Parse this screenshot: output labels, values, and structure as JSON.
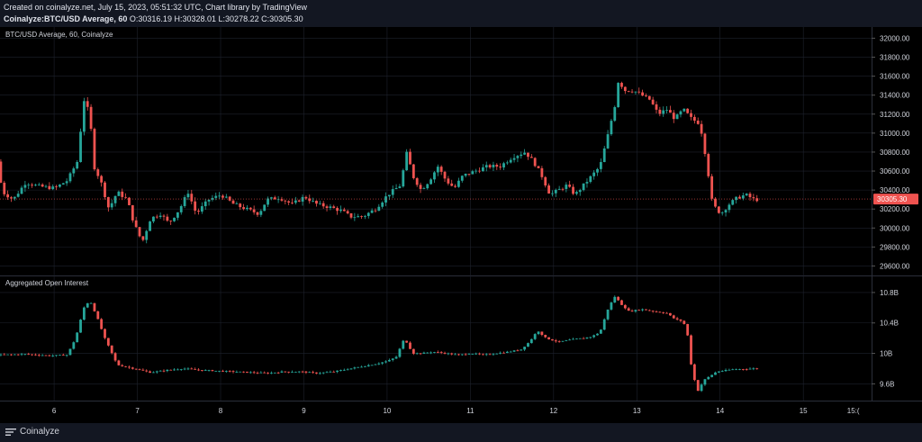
{
  "header": {
    "line1": "Created on coinalyze.net, July 15, 2023, 05:51:32 UTC, Chart library by TradingView",
    "symbol": "Coinalyze:BTC/USD Average, 60",
    "open_label": "O:",
    "open": "30316.19",
    "high_label": "H:",
    "high": "30328.01",
    "low_label": "L:",
    "low": "30278.22",
    "close_label": "C:",
    "close": "30305.30"
  },
  "footer": {
    "brand": "Coinalyze"
  },
  "colors": {
    "up": "#26a69a",
    "down": "#ef5350",
    "background": "#000000",
    "grid": "#1e222d",
    "text": "#d1d4dc",
    "price_badge": "#ef5350"
  },
  "chart_data": [
    {
      "type": "candlestick",
      "title": "BTC/USD Average, 60, Coinalyze",
      "y_ticks": [
        "32000.00",
        "31800.00",
        "31600.00",
        "31400.00",
        "31200.00",
        "31000.00",
        "30800.00",
        "30600.00",
        "30400.00",
        "30200.00",
        "30000.00",
        "29800.00",
        "29600.00"
      ],
      "ylim": [
        29500,
        32080
      ],
      "last_price": "30305.30",
      "x_ticks": [
        "6",
        "7",
        "8",
        "9",
        "10",
        "11",
        "12",
        "13",
        "14",
        "15",
        "15:("
      ],
      "x_tick_positions": [
        5.5,
        6.5,
        7.5,
        8.5,
        9.5,
        10.5,
        11.5,
        12.5,
        13.5,
        14.5,
        15.1
      ],
      "xlim": [
        4.85,
        15.32
      ],
      "path": [
        [
          4.86,
          30700
        ],
        [
          4.92,
          30380
        ],
        [
          5.05,
          30300
        ],
        [
          5.2,
          30480
        ],
        [
          5.35,
          30440
        ],
        [
          5.55,
          30420
        ],
        [
          5.7,
          30500
        ],
        [
          5.82,
          30700
        ],
        [
          5.9,
          31350
        ],
        [
          5.97,
          31200
        ],
        [
          6.02,
          30650
        ],
        [
          6.1,
          30500
        ],
        [
          6.2,
          30200
        ],
        [
          6.3,
          30380
        ],
        [
          6.42,
          30300
        ],
        [
          6.5,
          30050
        ],
        [
          6.6,
          29850
        ],
        [
          6.7,
          30100
        ],
        [
          6.82,
          30150
        ],
        [
          6.92,
          30050
        ],
        [
          7.05,
          30200
        ],
        [
          7.15,
          30380
        ],
        [
          7.25,
          30150
        ],
        [
          7.4,
          30300
        ],
        [
          7.55,
          30350
        ],
        [
          7.7,
          30250
        ],
        [
          7.85,
          30200
        ],
        [
          8.0,
          30150
        ],
        [
          8.1,
          30300
        ],
        [
          8.25,
          30320
        ],
        [
          8.4,
          30250
        ],
        [
          8.55,
          30330
        ],
        [
          8.7,
          30250
        ],
        [
          8.85,
          30220
        ],
        [
          9.0,
          30180
        ],
        [
          9.1,
          30120
        ],
        [
          9.25,
          30120
        ],
        [
          9.4,
          30200
        ],
        [
          9.55,
          30350
        ],
        [
          9.7,
          30450
        ],
        [
          9.78,
          30800
        ],
        [
          9.85,
          30550
        ],
        [
          9.95,
          30400
        ],
        [
          10.05,
          30500
        ],
        [
          10.15,
          30650
        ],
        [
          10.25,
          30500
        ],
        [
          10.35,
          30420
        ],
        [
          10.45,
          30550
        ],
        [
          10.6,
          30600
        ],
        [
          10.75,
          30650
        ],
        [
          10.9,
          30650
        ],
        [
          11.05,
          30750
        ],
        [
          11.2,
          30800
        ],
        [
          11.3,
          30700
        ],
        [
          11.4,
          30550
        ],
        [
          11.5,
          30350
        ],
        [
          11.6,
          30400
        ],
        [
          11.7,
          30450
        ],
        [
          11.8,
          30350
        ],
        [
          11.9,
          30450
        ],
        [
          12.0,
          30550
        ],
        [
          12.1,
          30650
        ],
        [
          12.2,
          31000
        ],
        [
          12.28,
          31300
        ],
        [
          12.32,
          31550
        ],
        [
          12.4,
          31450
        ],
        [
          12.5,
          31450
        ],
        [
          12.6,
          31400
        ],
        [
          12.7,
          31350
        ],
        [
          12.8,
          31200
        ],
        [
          12.9,
          31250
        ],
        [
          13.0,
          31150
        ],
        [
          13.1,
          31250
        ],
        [
          13.2,
          31150
        ],
        [
          13.3,
          31100
        ],
        [
          13.38,
          30700
        ],
        [
          13.45,
          30250
        ],
        [
          13.55,
          30150
        ],
        [
          13.65,
          30250
        ],
        [
          13.75,
          30320
        ],
        [
          13.85,
          30350
        ],
        [
          13.95,
          30300
        ]
      ]
    },
    {
      "type": "candlestick",
      "title": "Aggregated Open Interest",
      "y_ticks": [
        "10.8B",
        "10.4B",
        "10B",
        "9.6B"
      ],
      "y_tick_values": [
        10.8,
        10.4,
        10.0,
        9.6
      ],
      "ylim": [
        9.38,
        11.0
      ],
      "path": [
        [
          4.86,
          9.98
        ],
        [
          5.2,
          9.99
        ],
        [
          5.5,
          9.97
        ],
        [
          5.7,
          9.98
        ],
        [
          5.8,
          10.2
        ],
        [
          5.9,
          10.6
        ],
        [
          5.97,
          10.7
        ],
        [
          6.05,
          10.5
        ],
        [
          6.15,
          10.2
        ],
        [
          6.3,
          9.85
        ],
        [
          6.5,
          9.8
        ],
        [
          6.7,
          9.75
        ],
        [
          6.9,
          9.78
        ],
        [
          7.1,
          9.8
        ],
        [
          7.3,
          9.78
        ],
        [
          7.5,
          9.77
        ],
        [
          7.7,
          9.76
        ],
        [
          7.9,
          9.75
        ],
        [
          8.1,
          9.74
        ],
        [
          8.3,
          9.76
        ],
        [
          8.5,
          9.76
        ],
        [
          8.7,
          9.74
        ],
        [
          8.9,
          9.76
        ],
        [
          9.0,
          9.78
        ],
        [
          9.2,
          9.82
        ],
        [
          9.4,
          9.86
        ],
        [
          9.55,
          9.9
        ],
        [
          9.65,
          9.95
        ],
        [
          9.75,
          10.2
        ],
        [
          9.85,
          10.0
        ],
        [
          9.95,
          10.0
        ],
        [
          10.1,
          10.02
        ],
        [
          10.25,
          10.0
        ],
        [
          10.4,
          9.98
        ],
        [
          10.55,
          10.0
        ],
        [
          10.7,
          9.98
        ],
        [
          10.85,
          10.0
        ],
        [
          11.0,
          10.02
        ],
        [
          11.15,
          10.05
        ],
        [
          11.25,
          10.15
        ],
        [
          11.35,
          10.3
        ],
        [
          11.45,
          10.2
        ],
        [
          11.6,
          10.15
        ],
        [
          11.75,
          10.18
        ],
        [
          11.9,
          10.2
        ],
        [
          12.0,
          10.22
        ],
        [
          12.1,
          10.28
        ],
        [
          12.2,
          10.6
        ],
        [
          12.28,
          10.75
        ],
        [
          12.35,
          10.65
        ],
        [
          12.45,
          10.55
        ],
        [
          12.6,
          10.58
        ],
        [
          12.75,
          10.55
        ],
        [
          12.9,
          10.53
        ],
        [
          13.0,
          10.45
        ],
        [
          13.1,
          10.42
        ],
        [
          13.15,
          10.25
        ],
        [
          13.2,
          9.8
        ],
        [
          13.27,
          9.5
        ],
        [
          13.35,
          9.65
        ],
        [
          13.5,
          9.76
        ],
        [
          13.7,
          9.79
        ],
        [
          13.95,
          9.8
        ]
      ]
    }
  ]
}
